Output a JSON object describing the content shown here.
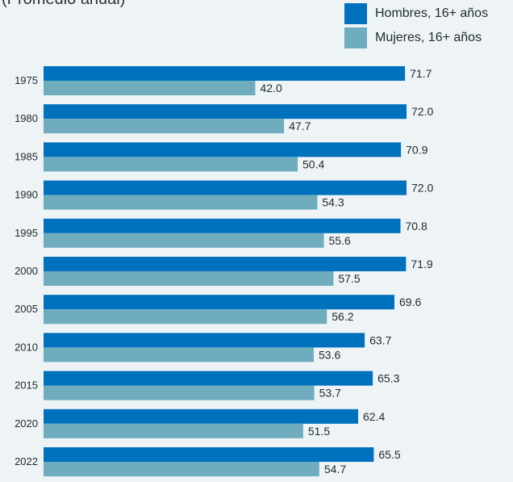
{
  "chart_data": {
    "type": "bar",
    "orientation": "horizontal",
    "subtitle": "(Promedio anual)",
    "categories": [
      "1975",
      "1980",
      "1985",
      "1990",
      "1995",
      "2000",
      "2005",
      "2010",
      "2015",
      "2020",
      "2022"
    ],
    "series": [
      {
        "name": "Hombres, 16+ años",
        "color": "#0071bc",
        "values": [
          71.7,
          72.0,
          70.9,
          72.0,
          70.8,
          71.9,
          69.6,
          63.7,
          65.3,
          62.4,
          65.5
        ]
      },
      {
        "name": "Mujeres, 16+ años",
        "color": "#6fadbe",
        "values": [
          42.0,
          47.7,
          50.4,
          54.3,
          55.6,
          57.5,
          56.2,
          53.6,
          53.7,
          51.5,
          54.7
        ]
      }
    ],
    "xlim": [
      0,
      72
    ],
    "legend_position": "top-right",
    "grid": false
  }
}
